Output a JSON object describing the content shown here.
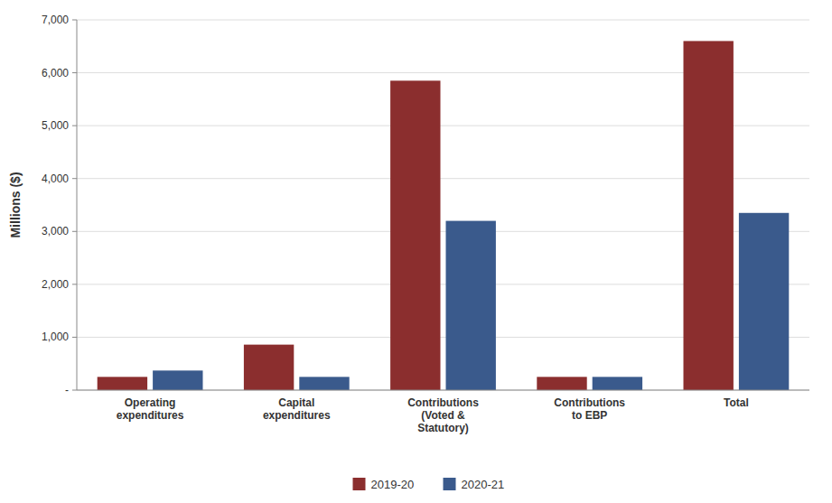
{
  "chart_data": {
    "type": "bar",
    "categories": [
      "Operating\nexpenditures",
      "Capital\nexpenditures",
      "Contributions\n(Voted &\nStatutory)",
      "Contributions\nto EBP",
      "Total"
    ],
    "series": [
      {
        "name": "2019-20",
        "color": "#8B2E2E",
        "values": [
          250,
          860,
          5850,
          250,
          6600
        ]
      },
      {
        "name": "2020-21",
        "color": "#3A5A8C",
        "values": [
          370,
          250,
          3200,
          250,
          3350
        ]
      }
    ],
    "ylabel": "Millions ($)",
    "ylim": [
      0,
      7000
    ],
    "yticks": [
      {
        "value": 0,
        "label": "-"
      },
      {
        "value": 1000,
        "label": "1,000"
      },
      {
        "value": 2000,
        "label": "2,000"
      },
      {
        "value": 3000,
        "label": "3,000"
      },
      {
        "value": 4000,
        "label": "4,000"
      },
      {
        "value": 5000,
        "label": "5,000"
      },
      {
        "value": 6000,
        "label": "6,000"
      },
      {
        "value": 7000,
        "label": "7,000"
      }
    ],
    "grid": true,
    "legend": "bottom"
  }
}
